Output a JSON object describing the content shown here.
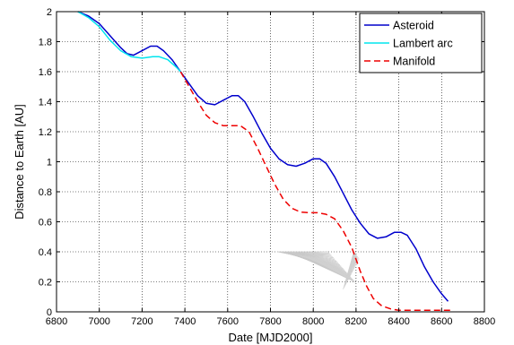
{
  "chart_data": {
    "type": "line",
    "xlabel": "Date [MJD2000]",
    "ylabel": "Distance to Earth [AU]",
    "xlim": [
      6800,
      8800
    ],
    "ylim": [
      0,
      2
    ],
    "grid": true,
    "grid_style": "dotted",
    "legend_position": "top-right",
    "x_ticks": [
      6800,
      7000,
      7200,
      7400,
      7600,
      7800,
      8000,
      8200,
      8400,
      8600,
      8800
    ],
    "y_ticks": [
      0,
      0.2,
      0.4,
      0.6,
      0.8,
      1,
      1.2,
      1.4,
      1.6,
      1.8,
      2
    ],
    "series": [
      {
        "name": "Asteroid",
        "color": "#0000cc",
        "style": "solid",
        "x": [
          6900,
          6950,
          7000,
          7050,
          7100,
          7130,
          7160,
          7200,
          7240,
          7270,
          7300,
          7340,
          7380,
          7420,
          7460,
          7500,
          7540,
          7580,
          7620,
          7650,
          7680,
          7720,
          7760,
          7800,
          7840,
          7880,
          7920,
          7960,
          8000,
          8030,
          8060,
          8100,
          8140,
          8180,
          8220,
          8260,
          8300,
          8340,
          8380,
          8410,
          8440,
          8480,
          8520,
          8560,
          8600,
          8630
        ],
        "y": [
          2.0,
          1.97,
          1.92,
          1.84,
          1.76,
          1.72,
          1.71,
          1.74,
          1.77,
          1.77,
          1.74,
          1.68,
          1.6,
          1.52,
          1.44,
          1.39,
          1.38,
          1.41,
          1.44,
          1.44,
          1.4,
          1.3,
          1.19,
          1.09,
          1.02,
          0.98,
          0.97,
          0.99,
          1.02,
          1.02,
          0.99,
          0.9,
          0.79,
          0.68,
          0.59,
          0.52,
          0.49,
          0.5,
          0.53,
          0.53,
          0.51,
          0.42,
          0.3,
          0.2,
          0.12,
          0.07
        ]
      },
      {
        "name": "Lambert arc",
        "color": "#00e5ee",
        "style": "solid",
        "x": [
          6900,
          6950,
          7000,
          7050,
          7100,
          7150,
          7200,
          7250,
          7280,
          7320,
          7360,
          7380
        ],
        "y": [
          2.0,
          1.96,
          1.9,
          1.81,
          1.74,
          1.7,
          1.69,
          1.7,
          1.7,
          1.68,
          1.63,
          1.6
        ]
      },
      {
        "name": "Manifold",
        "color": "#ee0000",
        "style": "dashed",
        "x": [
          7380,
          7420,
          7460,
          7500,
          7540,
          7580,
          7620,
          7660,
          7700,
          7740,
          7780,
          7820,
          7860,
          7900,
          7940,
          7980,
          8020,
          8060,
          8100,
          8140,
          8180,
          8200,
          8220,
          8250,
          8280,
          8320,
          8360,
          8400,
          8450,
          8500,
          8550,
          8600,
          8640
        ],
        "y": [
          1.6,
          1.5,
          1.4,
          1.31,
          1.26,
          1.24,
          1.24,
          1.24,
          1.2,
          1.09,
          0.97,
          0.85,
          0.75,
          0.69,
          0.665,
          0.66,
          0.66,
          0.65,
          0.62,
          0.54,
          0.43,
          0.35,
          0.27,
          0.17,
          0.09,
          0.04,
          0.02,
          0.01,
          0.01,
          0.01,
          0.01,
          0.01,
          0.01
        ]
      }
    ]
  }
}
